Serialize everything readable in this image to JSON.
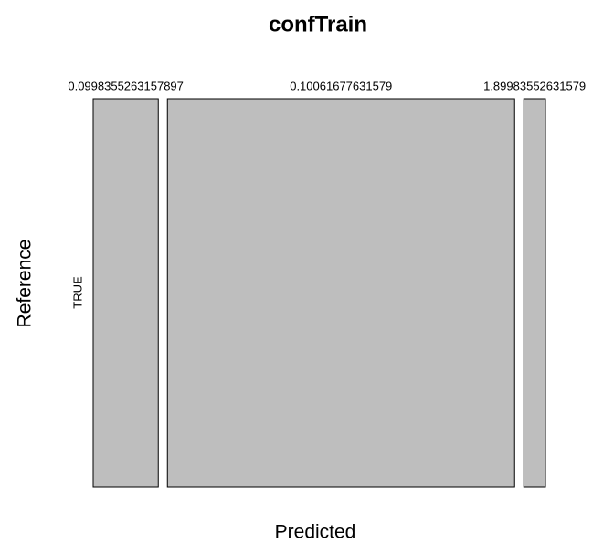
{
  "chart_data": {
    "type": "mosaic",
    "title": "confTrain",
    "xlabel": "Predicted",
    "ylabel": "Reference",
    "categories": [
      "0.0998355263157897",
      "0.10061677631579",
      "1.89983552631579"
    ],
    "rows": [
      "TRUE"
    ],
    "values": [
      15,
      80,
      5
    ],
    "color": "#bebebe"
  }
}
